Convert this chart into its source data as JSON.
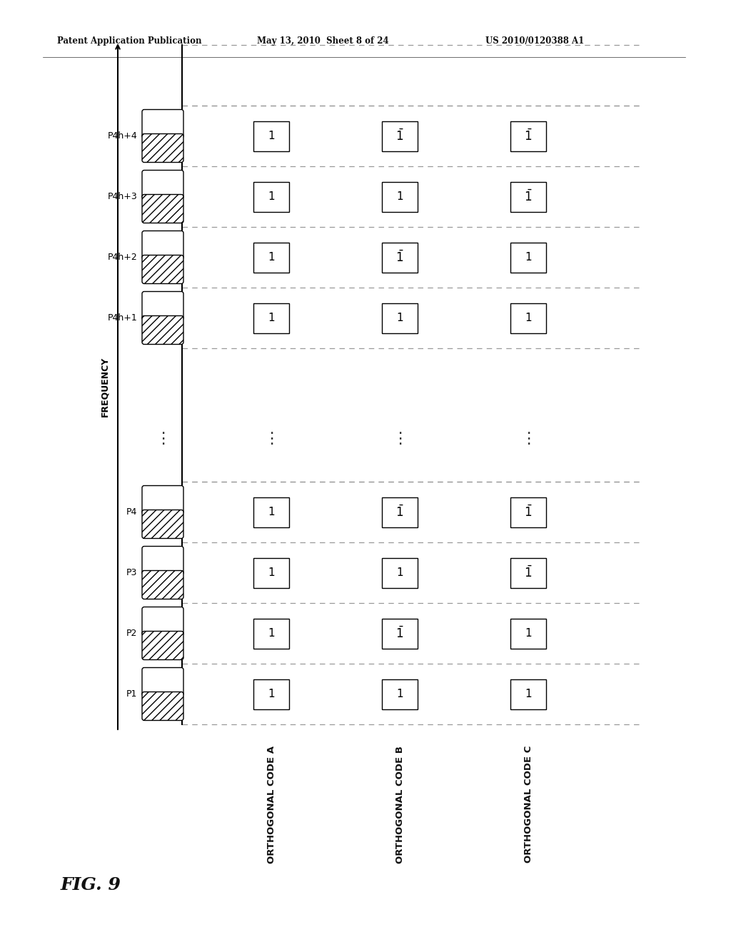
{
  "header_left": "Patent Application Publication",
  "header_mid": "May 13, 2010  Sheet 8 of 24",
  "header_right": "US 2010/0120388 A1",
  "fig_label": "FIG. 9",
  "frequency_label": "FREQUENCY",
  "col_labels": [
    "ORTHOGONAL CODE A",
    "ORTHOGONAL CODE B",
    "ORTHOGONAL CODE C"
  ],
  "lower_rows": [
    "P1",
    "P2",
    "P3",
    "P4"
  ],
  "upper_rows": [
    "P4h+1",
    "P4h+2",
    "P4h+3",
    "P4h+4"
  ],
  "lower_values": [
    [
      1,
      1,
      1
    ],
    [
      1,
      -1,
      1
    ],
    [
      1,
      1,
      -1
    ],
    [
      1,
      -1,
      -1
    ]
  ],
  "upper_values": [
    [
      1,
      1,
      1
    ],
    [
      1,
      -1,
      1
    ],
    [
      1,
      1,
      -1
    ],
    [
      1,
      -1,
      -1
    ]
  ],
  "bg_color": "#ffffff",
  "line_color": "#000000",
  "dashed_color": "#999999"
}
